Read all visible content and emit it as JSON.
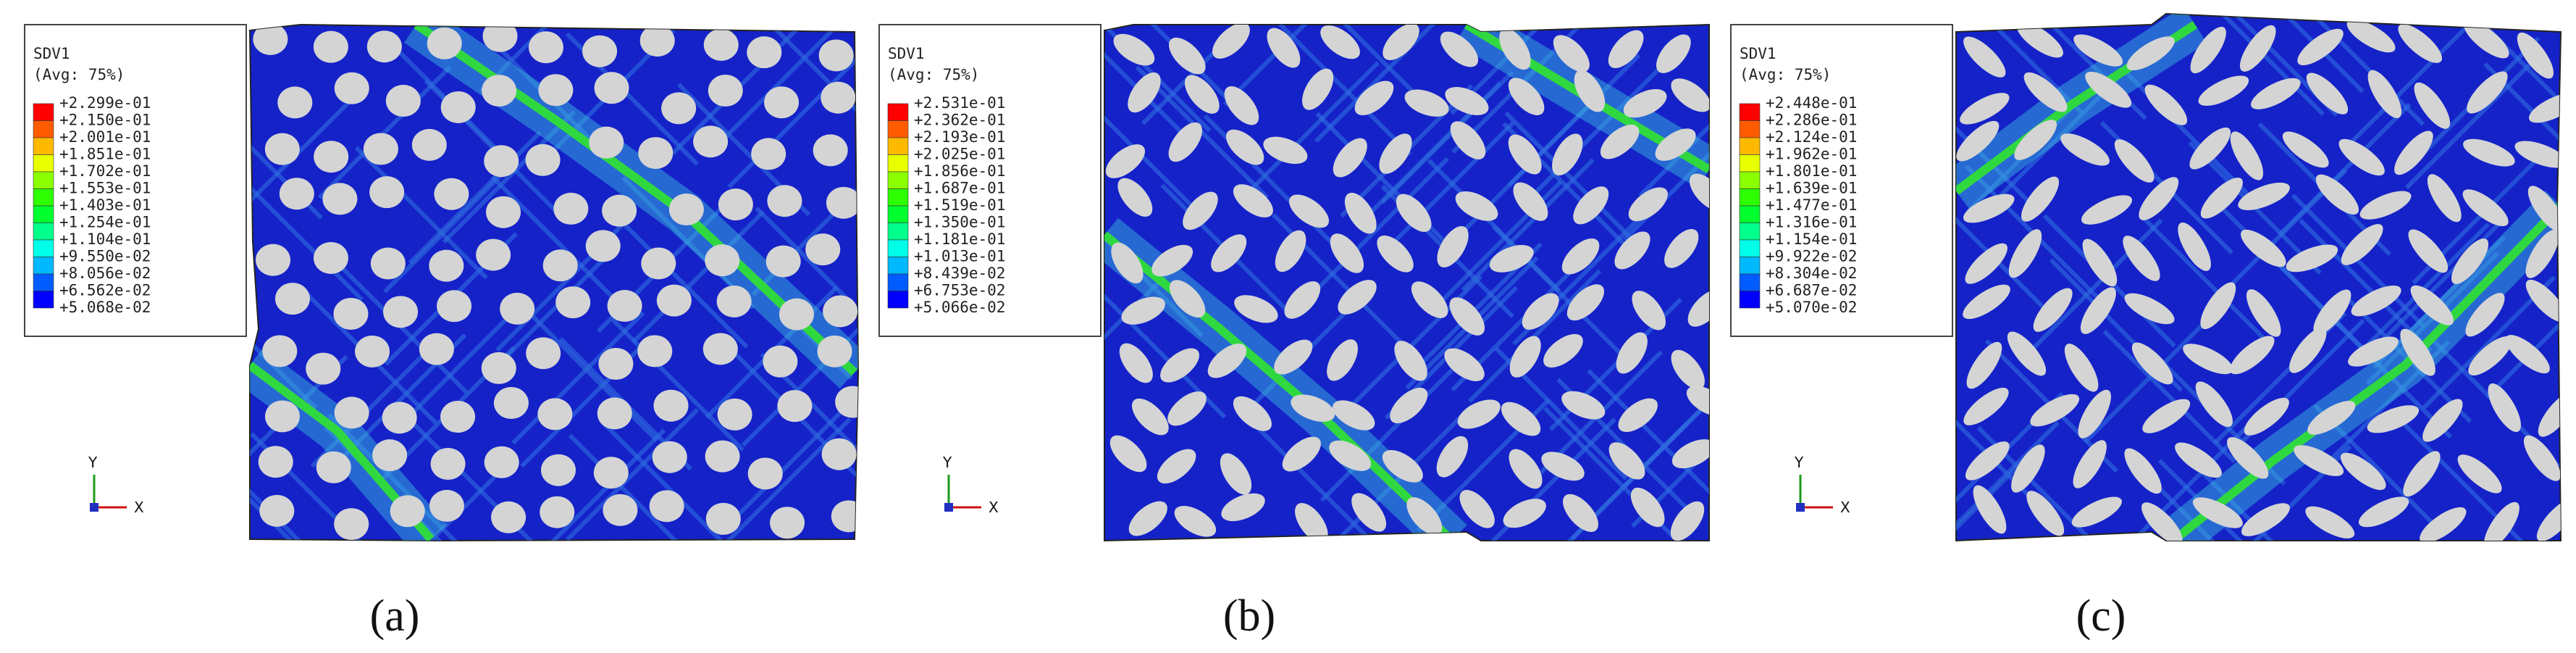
{
  "panels": [
    {
      "legend": {
        "title": "SDV1",
        "subtitle": "(Avg: 75%)",
        "labels": [
          "+2.299e-01",
          "+2.150e-01",
          "+2.001e-01",
          "+1.851e-01",
          "+1.702e-01",
          "+1.553e-01",
          "+1.403e-01",
          "+1.254e-01",
          "+1.104e-01",
          "+9.550e-02",
          "+8.056e-02",
          "+6.562e-02",
          "+5.068e-02"
        ]
      },
      "axes": {
        "y": "Y",
        "x": "X"
      },
      "caption": "(a)"
    },
    {
      "legend": {
        "title": "SDV1",
        "subtitle": "(Avg: 75%)",
        "labels": [
          "+2.531e-01",
          "+2.362e-01",
          "+2.193e-01",
          "+2.025e-01",
          "+1.856e-01",
          "+1.687e-01",
          "+1.519e-01",
          "+1.350e-01",
          "+1.181e-01",
          "+1.013e-01",
          "+8.439e-02",
          "+6.753e-02",
          "+5.066e-02"
        ]
      },
      "axes": {
        "y": "Y",
        "x": "X"
      },
      "caption": "(b)"
    },
    {
      "legend": {
        "title": "SDV1",
        "subtitle": "(Avg: 75%)",
        "labels": [
          "+2.448e-01",
          "+2.286e-01",
          "+2.124e-01",
          "+1.962e-01",
          "+1.801e-01",
          "+1.639e-01",
          "+1.477e-01",
          "+1.316e-01",
          "+1.154e-01",
          "+9.922e-02",
          "+8.304e-02",
          "+6.687e-02",
          "+5.070e-02"
        ]
      },
      "axes": {
        "y": "Y",
        "x": "X"
      },
      "caption": "(c)"
    }
  ]
}
